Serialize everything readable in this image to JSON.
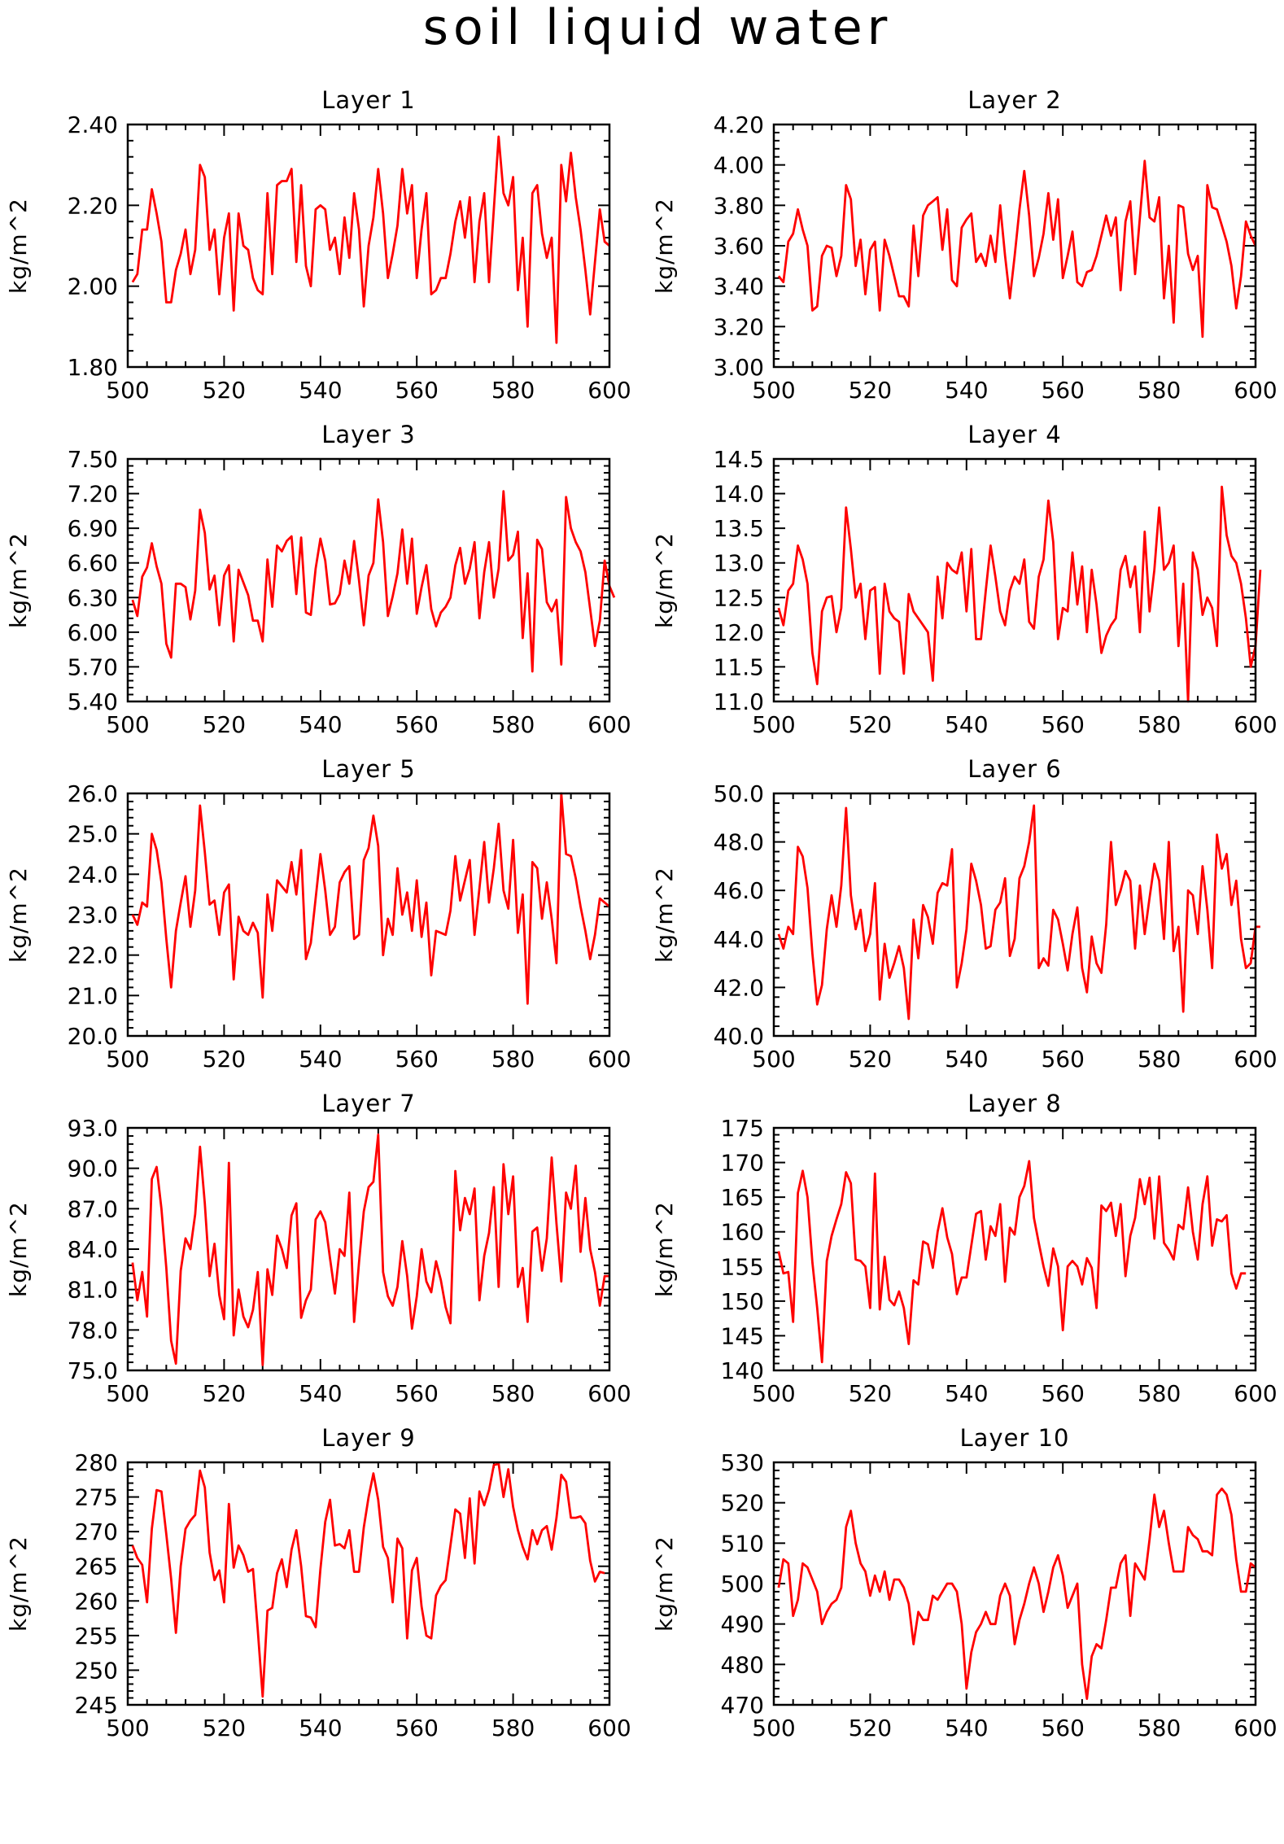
{
  "figure": {
    "title": "soil liquid water",
    "line_color": "#ff0000",
    "x_axis": {
      "range": [
        500,
        600
      ],
      "ticks": [
        "500",
        "520",
        "540",
        "560",
        "580",
        "600"
      ]
    }
  },
  "chart_data": [
    {
      "type": "line",
      "title": "Layer 1",
      "ylabel": "kg/m^2",
      "xlim": [
        500,
        600
      ],
      "ylim": [
        1.8,
        2.4
      ],
      "yticks": [
        "1.80",
        "2.00",
        "2.20",
        "2.40"
      ],
      "x_start": 501,
      "values": [
        2.01,
        2.03,
        2.14,
        2.14,
        2.24,
        2.18,
        2.11,
        1.96,
        1.96,
        2.04,
        2.08,
        2.14,
        2.03,
        2.09,
        2.3,
        2.27,
        2.09,
        2.14,
        1.98,
        2.12,
        2.18,
        1.94,
        2.18,
        2.1,
        2.09,
        2.02,
        1.99,
        1.98,
        2.23,
        2.03,
        2.25,
        2.26,
        2.26,
        2.29,
        2.06,
        2.25,
        2.05,
        2.0,
        2.19,
        2.2,
        2.19,
        2.09,
        2.12,
        2.03,
        2.17,
        2.07,
        2.23,
        2.14,
        1.95,
        2.1,
        2.17,
        2.29,
        2.18,
        2.02,
        2.08,
        2.15,
        2.29,
        2.18,
        2.25,
        2.02,
        2.14,
        2.23,
        1.98,
        1.99,
        2.02,
        2.02,
        2.08,
        2.16,
        2.21,
        2.12,
        2.22,
        2.01,
        2.16,
        2.23,
        2.01,
        2.19,
        2.37,
        2.23,
        2.2,
        2.27,
        1.99,
        2.12,
        1.9,
        2.23,
        2.25,
        2.13,
        2.07,
        2.12,
        1.86,
        2.3,
        2.21,
        2.33,
        2.22,
        2.14,
        2.04,
        1.93,
        2.06,
        2.19,
        2.11,
        2.1
      ]
    },
    {
      "type": "line",
      "title": "Layer 2",
      "ylabel": "kg/m^2",
      "xlim": [
        500,
        600
      ],
      "ylim": [
        3.0,
        4.2
      ],
      "yticks": [
        "3.00",
        "3.20",
        "3.40",
        "3.60",
        "3.80",
        "4.00",
        "4.20"
      ],
      "x_start": 501,
      "values": [
        3.45,
        3.42,
        3.62,
        3.66,
        3.78,
        3.68,
        3.6,
        3.28,
        3.3,
        3.55,
        3.6,
        3.59,
        3.45,
        3.55,
        3.9,
        3.83,
        3.5,
        3.63,
        3.36,
        3.58,
        3.62,
        3.28,
        3.63,
        3.55,
        3.45,
        3.35,
        3.35,
        3.3,
        3.7,
        3.45,
        3.75,
        3.8,
        3.82,
        3.84,
        3.58,
        3.78,
        3.43,
        3.4,
        3.69,
        3.73,
        3.76,
        3.52,
        3.56,
        3.5,
        3.65,
        3.52,
        3.8,
        3.55,
        3.34,
        3.55,
        3.78,
        3.97,
        3.75,
        3.45,
        3.54,
        3.66,
        3.86,
        3.63,
        3.83,
        3.44,
        3.55,
        3.67,
        3.42,
        3.4,
        3.47,
        3.48,
        3.55,
        3.65,
        3.75,
        3.65,
        3.74,
        3.38,
        3.72,
        3.82,
        3.46,
        3.74,
        4.02,
        3.74,
        3.72,
        3.84,
        3.34,
        3.6,
        3.22,
        3.8,
        3.79,
        3.56,
        3.48,
        3.55,
        3.15,
        3.9,
        3.79,
        3.78,
        3.7,
        3.62,
        3.5,
        3.29,
        3.45,
        3.72,
        3.65,
        3.6
      ]
    },
    {
      "type": "line",
      "title": "Layer 3",
      "ylabel": "kg/m^2",
      "xlim": [
        500,
        600
      ],
      "ylim": [
        5.4,
        7.5
      ],
      "yticks": [
        "5.40",
        "5.70",
        "6.00",
        "6.30",
        "6.60",
        "6.90",
        "7.20",
        "7.50"
      ],
      "x_start": 501,
      "values": [
        6.28,
        6.14,
        6.48,
        6.56,
        6.77,
        6.57,
        6.42,
        5.9,
        5.78,
        6.42,
        6.42,
        6.39,
        6.11,
        6.36,
        7.06,
        6.86,
        6.37,
        6.49,
        6.06,
        6.49,
        6.58,
        5.92,
        6.54,
        6.43,
        6.32,
        6.1,
        6.1,
        5.92,
        6.63,
        6.22,
        6.75,
        6.7,
        6.79,
        6.83,
        6.33,
        6.82,
        6.17,
        6.15,
        6.55,
        6.81,
        6.62,
        6.24,
        6.25,
        6.33,
        6.62,
        6.42,
        6.79,
        6.45,
        6.06,
        6.49,
        6.6,
        7.15,
        6.78,
        6.14,
        6.31,
        6.51,
        6.89,
        6.42,
        6.81,
        6.16,
        6.39,
        6.58,
        6.2,
        6.05,
        6.17,
        6.22,
        6.3,
        6.58,
        6.73,
        6.42,
        6.55,
        6.78,
        6.12,
        6.52,
        6.78,
        6.3,
        6.55,
        7.22,
        6.62,
        6.67,
        6.87,
        5.95,
        6.51,
        5.66,
        6.8,
        6.72,
        6.26,
        6.18,
        6.28,
        5.72,
        7.17,
        6.9,
        6.78,
        6.7,
        6.52,
        6.2,
        5.88,
        6.1,
        6.62,
        6.4,
        6.3
      ]
    },
    {
      "type": "line",
      "title": "Layer 4",
      "ylabel": "kg/m^2",
      "xlim": [
        500,
        600
      ],
      "ylim": [
        11.0,
        14.5
      ],
      "yticks": [
        "11.0",
        "11.5",
        "12.0",
        "12.5",
        "13.0",
        "13.5",
        "14.0",
        "14.5"
      ],
      "x_start": 501,
      "values": [
        12.35,
        12.1,
        12.6,
        12.7,
        13.25,
        13.05,
        12.7,
        11.7,
        11.25,
        12.3,
        12.5,
        12.52,
        12.0,
        12.35,
        13.8,
        13.2,
        12.5,
        12.7,
        11.9,
        12.6,
        12.65,
        11.4,
        12.7,
        12.3,
        12.2,
        12.15,
        11.4,
        12.55,
        12.3,
        12.2,
        12.1,
        12.0,
        11.3,
        12.8,
        12.2,
        13.0,
        12.9,
        12.85,
        13.15,
        12.3,
        13.2,
        11.9,
        11.9,
        12.6,
        13.25,
        12.8,
        12.3,
        12.1,
        12.6,
        12.8,
        12.7,
        13.05,
        12.15,
        12.05,
        12.8,
        13.05,
        13.9,
        13.3,
        11.9,
        12.35,
        12.3,
        13.15,
        12.4,
        12.95,
        12.0,
        12.9,
        12.4,
        11.7,
        11.95,
        12.1,
        12.2,
        12.9,
        13.1,
        12.65,
        12.95,
        12.0,
        13.45,
        12.3,
        12.9,
        13.8,
        12.9,
        13.0,
        13.25,
        11.8,
        12.7,
        11.0,
        13.15,
        12.9,
        12.25,
        12.5,
        12.35,
        11.8,
        14.1,
        13.4,
        13.1,
        13.0,
        12.7,
        12.2,
        11.5,
        11.8,
        12.9
      ]
    },
    {
      "type": "line",
      "title": "Layer 5",
      "ylabel": "kg/m^2",
      "xlim": [
        500,
        600
      ],
      "ylim": [
        20.0,
        26.0
      ],
      "yticks": [
        "20.0",
        "21.0",
        "22.0",
        "23.0",
        "24.0",
        "25.0",
        "26.0"
      ],
      "x_start": 501,
      "values": [
        23.0,
        22.75,
        23.3,
        23.2,
        25.0,
        24.6,
        23.8,
        22.4,
        21.2,
        22.6,
        23.3,
        23.95,
        22.7,
        23.6,
        25.7,
        24.55,
        23.25,
        23.35,
        22.5,
        23.55,
        23.75,
        21.4,
        22.95,
        22.6,
        22.5,
        22.8,
        22.55,
        20.95,
        23.5,
        22.6,
        23.85,
        23.7,
        23.55,
        24.3,
        23.5,
        24.6,
        21.9,
        22.3,
        23.4,
        24.5,
        23.6,
        22.5,
        22.7,
        23.8,
        24.05,
        24.2,
        22.4,
        22.5,
        24.35,
        24.65,
        25.45,
        24.7,
        22.0,
        22.9,
        22.5,
        24.15,
        23.0,
        23.55,
        22.6,
        23.85,
        22.45,
        23.3,
        21.5,
        22.6,
        22.55,
        22.5,
        23.1,
        24.45,
        23.35,
        23.85,
        24.35,
        22.5,
        23.65,
        24.8,
        23.3,
        24.15,
        25.25,
        23.6,
        23.15,
        24.85,
        22.55,
        23.5,
        20.8,
        24.3,
        24.15,
        22.9,
        23.8,
        22.9,
        21.8,
        26.0,
        24.5,
        24.45,
        23.9,
        23.2,
        22.6,
        21.9,
        22.5,
        23.4,
        23.3,
        23.2
      ]
    },
    {
      "type": "line",
      "title": "Layer 6",
      "ylabel": "kg/m^2",
      "xlim": [
        500,
        600
      ],
      "ylim": [
        40.0,
        50.0
      ],
      "yticks": [
        "40.0",
        "42.0",
        "44.0",
        "46.0",
        "48.0",
        "50.0"
      ],
      "x_start": 501,
      "values": [
        44.2,
        43.6,
        44.5,
        44.2,
        47.8,
        47.4,
        46.1,
        43.4,
        41.3,
        42.1,
        44.4,
        45.8,
        44.5,
        46.2,
        49.4,
        45.8,
        44.4,
        45.2,
        43.5,
        44.2,
        46.3,
        41.5,
        43.8,
        42.4,
        43.0,
        43.7,
        42.8,
        40.7,
        44.8,
        43.2,
        45.4,
        44.9,
        43.8,
        45.9,
        46.3,
        46.2,
        47.7,
        42.0,
        43.0,
        44.4,
        47.1,
        46.4,
        45.4,
        43.6,
        43.7,
        45.2,
        45.5,
        46.5,
        43.3,
        44.0,
        46.5,
        47.0,
        48.0,
        49.5,
        42.8,
        43.2,
        42.9,
        45.2,
        44.8,
        43.8,
        42.7,
        44.2,
        45.3,
        42.8,
        41.8,
        44.1,
        43.0,
        42.6,
        44.6,
        48.0,
        45.4,
        46.0,
        46.8,
        46.4,
        43.6,
        46.2,
        44.2,
        45.7,
        47.1,
        46.4,
        44.0,
        48.0,
        43.5,
        44.5,
        41.0,
        46.0,
        45.8,
        44.2,
        47.0,
        45.2,
        42.8,
        48.3,
        46.9,
        47.5,
        45.4,
        46.4,
        44.0,
        42.8,
        43.0,
        44.5,
        44.5
      ]
    },
    {
      "type": "line",
      "title": "Layer 7",
      "ylabel": "kg/m^2",
      "xlim": [
        500,
        600
      ],
      "ylim": [
        75.0,
        93.0
      ],
      "yticks": [
        "75.0",
        "78.0",
        "81.0",
        "84.0",
        "87.0",
        "90.0",
        "93.0"
      ],
      "x_start": 501,
      "values": [
        83.0,
        80.2,
        82.3,
        79.0,
        89.2,
        90.1,
        87.0,
        82.6,
        77.2,
        75.5,
        82.4,
        84.8,
        84.0,
        86.6,
        91.6,
        87.4,
        82.0,
        84.4,
        80.6,
        78.8,
        90.4,
        77.6,
        81.0,
        79.0,
        78.2,
        79.5,
        82.3,
        75.4,
        82.5,
        80.6,
        85.0,
        84.0,
        82.6,
        86.5,
        87.4,
        78.9,
        80.2,
        81.0,
        86.2,
        86.8,
        86.0,
        83.3,
        80.7,
        84.0,
        83.5,
        88.2,
        78.6,
        83.0,
        86.8,
        88.6,
        89.0,
        92.5,
        82.3,
        80.5,
        79.8,
        81.2,
        84.6,
        82.0,
        78.1,
        80.5,
        84.0,
        81.6,
        80.8,
        83.1,
        81.7,
        79.7,
        78.5,
        89.8,
        85.4,
        87.8,
        86.6,
        88.5,
        80.2,
        83.5,
        85.2,
        88.6,
        81.2,
        90.3,
        86.6,
        89.4,
        81.2,
        82.6,
        78.6,
        85.3,
        85.6,
        82.4,
        84.8,
        90.8,
        85.9,
        81.6,
        88.2,
        87.0,
        90.2,
        83.8,
        87.8,
        84.0,
        82.3,
        79.8,
        82.0,
        82.0
      ]
    },
    {
      "type": "line",
      "title": "Layer 8",
      "ylabel": "kg/m^2",
      "xlim": [
        500,
        600
      ],
      "ylim": [
        140,
        175
      ],
      "yticks": [
        "140",
        "145",
        "150",
        "155",
        "160",
        "165",
        "170",
        "175"
      ],
      "x_start": 501,
      "values": [
        157.2,
        154.0,
        154.2,
        147.0,
        165.6,
        168.8,
        165.0,
        155.6,
        149.0,
        141.2,
        155.8,
        159.4,
        161.8,
        164.0,
        168.6,
        167.0,
        156.0,
        155.8,
        155.0,
        149.0,
        168.4,
        148.8,
        156.4,
        150.2,
        149.4,
        151.4,
        149.0,
        143.8,
        153.0,
        152.4,
        158.6,
        158.2,
        154.8,
        160.0,
        163.4,
        159.2,
        156.8,
        151.0,
        153.4,
        153.4,
        158.0,
        162.6,
        163.0,
        156.0,
        160.8,
        159.4,
        164.0,
        152.8,
        160.6,
        159.6,
        165.0,
        166.6,
        170.2,
        162.0,
        158.4,
        155.0,
        152.2,
        157.6,
        155.0,
        145.8,
        155.0,
        155.8,
        155.0,
        152.4,
        156.2,
        154.8,
        149.0,
        163.8,
        163.0,
        164.2,
        159.4,
        164.0,
        153.6,
        159.4,
        162.0,
        167.6,
        164.0,
        167.8,
        159.0,
        168.0,
        158.4,
        157.4,
        156.0,
        161.0,
        160.4,
        166.4,
        160.0,
        156.0,
        164.0,
        168.0,
        158.0,
        161.8,
        161.5,
        162.4,
        154.0,
        151.8,
        154.0,
        154.0
      ]
    },
    {
      "type": "line",
      "title": "Layer 9",
      "ylabel": "kg/m^2",
      "xlim": [
        500,
        600
      ],
      "ylim": [
        245,
        280
      ],
      "yticks": [
        "245",
        "250",
        "255",
        "260",
        "265",
        "270",
        "275",
        "280"
      ],
      "x_start": 501,
      "values": [
        268.0,
        266.2,
        265.2,
        259.8,
        270.4,
        276.0,
        275.8,
        269.6,
        263.2,
        255.4,
        265.0,
        270.4,
        271.6,
        272.4,
        278.8,
        276.4,
        267.0,
        263.0,
        264.4,
        259.8,
        274.0,
        264.8,
        268.0,
        266.6,
        264.2,
        264.6,
        255.8,
        246.2,
        258.6,
        259.0,
        264.0,
        266.0,
        262.0,
        267.4,
        270.2,
        265.0,
        257.8,
        257.6,
        256.2,
        264.6,
        271.4,
        274.6,
        268.0,
        268.2,
        267.6,
        270.2,
        264.2,
        264.2,
        270.6,
        275.0,
        278.4,
        274.6,
        267.8,
        266.2,
        259.8,
        269.0,
        267.6,
        254.6,
        264.4,
        266.2,
        259.2,
        255.0,
        254.6,
        260.8,
        262.2,
        263.0,
        268.0,
        273.2,
        272.6,
        266.2,
        274.8,
        265.4,
        275.8,
        273.8,
        276.0,
        279.6,
        279.8,
        275.0,
        279.0,
        273.6,
        270.2,
        267.8,
        266.0,
        270.2,
        268.2,
        270.2,
        270.8,
        267.4,
        272.0,
        278.2,
        277.2,
        272.0,
        272.0,
        272.2,
        271.2,
        265.8,
        262.8,
        264.2,
        264.0
      ]
    },
    {
      "type": "line",
      "title": "Layer 10",
      "ylabel": "kg/m^2",
      "xlim": [
        500,
        600
      ],
      "ylim": [
        470,
        530
      ],
      "yticks": [
        "470",
        "480",
        "490",
        "500",
        "510",
        "520",
        "530"
      ],
      "x_start": 501,
      "values": [
        499.0,
        506.0,
        505.0,
        492.0,
        496.0,
        505.0,
        504.0,
        501.0,
        498.0,
        490.0,
        493.0,
        495.0,
        496.0,
        499.0,
        514.0,
        518.0,
        510.0,
        505.0,
        503.0,
        497.0,
        502.0,
        498.0,
        503.0,
        496.0,
        501.0,
        501.0,
        499.0,
        495.0,
        485.0,
        493.0,
        491.0,
        491.0,
        497.0,
        496.0,
        498.0,
        500.0,
        500.0,
        498.0,
        490.0,
        474.0,
        483.0,
        488.0,
        490.0,
        493.0,
        490.0,
        490.0,
        497.0,
        500.0,
        497.0,
        485.0,
        491.0,
        495.0,
        500.0,
        504.0,
        500.0,
        493.0,
        498.0,
        504.0,
        507.0,
        502.0,
        494.0,
        497.0,
        500.0,
        480.0,
        471.5,
        482.0,
        485.0,
        484.0,
        491.0,
        499.0,
        499.0,
        505.0,
        507.0,
        492.0,
        505.0,
        503.0,
        501.0,
        511.0,
        522.0,
        514.0,
        518.0,
        510.0,
        503.0,
        503.0,
        503.0,
        514.0,
        512.0,
        511.0,
        508.0,
        508.0,
        507.0,
        522.0,
        523.5,
        522.0,
        517.0,
        506.0,
        498.0,
        498.0,
        505.0,
        504.0
      ]
    }
  ]
}
